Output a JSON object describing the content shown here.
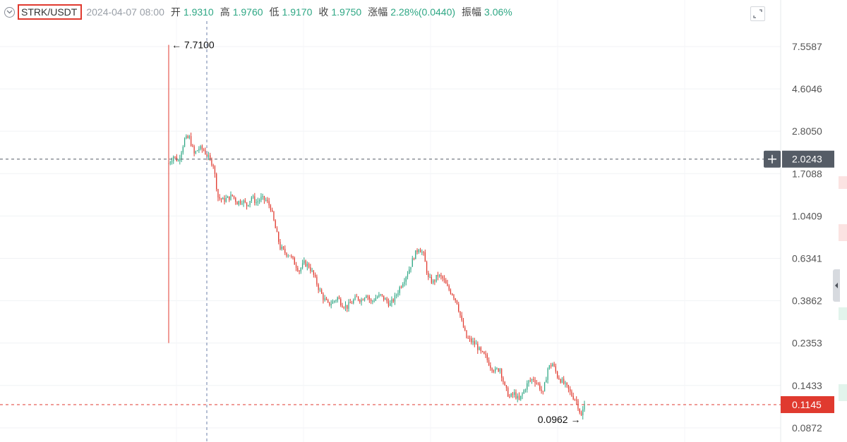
{
  "legend": {
    "symbol": "STRK/USDT",
    "datetime": "2024-04-07 08:00",
    "open_label": "开",
    "open": "1.9310",
    "high_label": "高",
    "high": "1.9760",
    "low_label": "低",
    "low": "1.9170",
    "close_label": "收",
    "close": "1.9750",
    "change_label": "涨幅",
    "change": "2.28%(0.0440)",
    "amplitude_label": "振幅",
    "amplitude": "3.06%"
  },
  "chart_data": {
    "type": "candlestick",
    "y_scale": "log",
    "y_ticks": [
      "7.5587",
      "4.6046",
      "2.8050",
      "1.7088",
      "1.0409",
      "0.6341",
      "0.3862",
      "0.2353",
      "0.1433",
      "0.0872"
    ],
    "crosshair_price": "2.0243",
    "last_price": "0.1145",
    "max_annotation": "7.7100",
    "min_annotation": "0.0962",
    "series": [
      {
        "name": "STRK/USDT",
        "close_path": [
          {
            "i": 0,
            "v": 1.93
          },
          {
            "i": 3,
            "v": 2.1
          },
          {
            "i": 6,
            "v": 1.98
          },
          {
            "i": 10,
            "v": 2.55
          },
          {
            "i": 13,
            "v": 2.6
          },
          {
            "i": 16,
            "v": 2.15
          },
          {
            "i": 19,
            "v": 2.3
          },
          {
            "i": 22,
            "v": 2.25
          },
          {
            "i": 25,
            "v": 2.05
          },
          {
            "i": 28,
            "v": 1.9
          },
          {
            "i": 31,
            "v": 1.3
          },
          {
            "i": 34,
            "v": 1.25
          },
          {
            "i": 37,
            "v": 1.28
          },
          {
            "i": 40,
            "v": 1.32
          },
          {
            "i": 43,
            "v": 1.22
          },
          {
            "i": 46,
            "v": 1.25
          },
          {
            "i": 49,
            "v": 1.18
          },
          {
            "i": 52,
            "v": 1.3
          },
          {
            "i": 55,
            "v": 1.22
          },
          {
            "i": 58,
            "v": 1.28
          },
          {
            "i": 61,
            "v": 1.25
          },
          {
            "i": 64,
            "v": 1.15
          },
          {
            "i": 67,
            "v": 0.9
          },
          {
            "i": 70,
            "v": 0.72
          },
          {
            "i": 73,
            "v": 0.68
          },
          {
            "i": 76,
            "v": 0.66
          },
          {
            "i": 79,
            "v": 0.6
          },
          {
            "i": 82,
            "v": 0.55
          },
          {
            "i": 85,
            "v": 0.6
          },
          {
            "i": 88,
            "v": 0.58
          },
          {
            "i": 91,
            "v": 0.52
          },
          {
            "i": 94,
            "v": 0.45
          },
          {
            "i": 97,
            "v": 0.4
          },
          {
            "i": 100,
            "v": 0.37
          },
          {
            "i": 103,
            "v": 0.38
          },
          {
            "i": 106,
            "v": 0.4
          },
          {
            "i": 109,
            "v": 0.37
          },
          {
            "i": 112,
            "v": 0.36
          },
          {
            "i": 115,
            "v": 0.38
          },
          {
            "i": 118,
            "v": 0.4
          },
          {
            "i": 121,
            "v": 0.39
          },
          {
            "i": 124,
            "v": 0.42
          },
          {
            "i": 127,
            "v": 0.38
          },
          {
            "i": 130,
            "v": 0.4
          },
          {
            "i": 133,
            "v": 0.41
          },
          {
            "i": 136,
            "v": 0.39
          },
          {
            "i": 139,
            "v": 0.37
          },
          {
            "i": 142,
            "v": 0.4
          },
          {
            "i": 145,
            "v": 0.45
          },
          {
            "i": 148,
            "v": 0.5
          },
          {
            "i": 151,
            "v": 0.56
          },
          {
            "i": 154,
            "v": 0.65
          },
          {
            "i": 157,
            "v": 0.72
          },
          {
            "i": 160,
            "v": 0.66
          },
          {
            "i": 163,
            "v": 0.5
          },
          {
            "i": 166,
            "v": 0.48
          },
          {
            "i": 169,
            "v": 0.52
          },
          {
            "i": 172,
            "v": 0.5
          },
          {
            "i": 175,
            "v": 0.45
          },
          {
            "i": 178,
            "v": 0.42
          },
          {
            "i": 181,
            "v": 0.38
          },
          {
            "i": 184,
            "v": 0.3
          },
          {
            "i": 187,
            "v": 0.25
          },
          {
            "i": 190,
            "v": 0.24
          },
          {
            "i": 193,
            "v": 0.23
          },
          {
            "i": 196,
            "v": 0.21
          },
          {
            "i": 199,
            "v": 0.2
          },
          {
            "i": 202,
            "v": 0.18
          },
          {
            "i": 205,
            "v": 0.17
          },
          {
            "i": 208,
            "v": 0.175
          },
          {
            "i": 211,
            "v": 0.14
          },
          {
            "i": 214,
            "v": 0.125
          },
          {
            "i": 217,
            "v": 0.13
          },
          {
            "i": 220,
            "v": 0.12
          },
          {
            "i": 223,
            "v": 0.135
          },
          {
            "i": 226,
            "v": 0.15
          },
          {
            "i": 229,
            "v": 0.155
          },
          {
            "i": 232,
            "v": 0.145
          },
          {
            "i": 235,
            "v": 0.13
          },
          {
            "i": 238,
            "v": 0.175
          },
          {
            "i": 241,
            "v": 0.185
          },
          {
            "i": 244,
            "v": 0.16
          },
          {
            "i": 247,
            "v": 0.15
          },
          {
            "i": 250,
            "v": 0.14
          },
          {
            "i": 253,
            "v": 0.128
          },
          {
            "i": 256,
            "v": 0.12
          },
          {
            "i": 259,
            "v": 0.1
          },
          {
            "i": 261,
            "v": 0.1145
          }
        ]
      }
    ],
    "colors": {
      "up": "#2ea784",
      "down": "#e03a2f",
      "axis_text": "#555555",
      "grid": "#f0f2f5"
    }
  }
}
